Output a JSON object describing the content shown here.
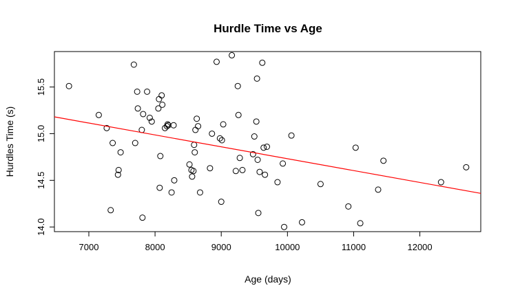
{
  "chart_data": {
    "type": "scatter",
    "title": "Hurdle Time vs Age",
    "xlabel": "Age (days)",
    "ylabel": "Hurdles Time (s)",
    "xlim": [
      6480,
      12920
    ],
    "ylim": [
      13.95,
      15.88
    ],
    "xticks": [
      "7000",
      "8000",
      "9000",
      "10000",
      "11000",
      "12000"
    ],
    "yticks": [
      "14.0",
      "14.5",
      "15.0",
      "15.5"
    ],
    "grid": false,
    "colors": {
      "points": "#000000",
      "trendline": "#ff0000"
    },
    "trendline": {
      "x": [
        6480,
        12920
      ],
      "y": [
        15.18,
        14.36
      ]
    },
    "points": [
      [
        6700,
        15.51
      ],
      [
        7150,
        15.2
      ],
      [
        7270,
        15.06
      ],
      [
        7330,
        14.18
      ],
      [
        7360,
        14.9
      ],
      [
        7440,
        14.56
      ],
      [
        7450,
        14.61
      ],
      [
        7480,
        14.8
      ],
      [
        7680,
        15.74
      ],
      [
        7700,
        14.9
      ],
      [
        7730,
        15.45
      ],
      [
        7740,
        15.27
      ],
      [
        7800,
        15.04
      ],
      [
        7810,
        14.1
      ],
      [
        7820,
        15.21
      ],
      [
        7880,
        15.45
      ],
      [
        7920,
        15.17
      ],
      [
        7950,
        15.13
      ],
      [
        8050,
        15.27
      ],
      [
        8060,
        15.37
      ],
      [
        8070,
        14.42
      ],
      [
        8080,
        14.76
      ],
      [
        8100,
        15.41
      ],
      [
        8110,
        15.31
      ],
      [
        8150,
        15.06
      ],
      [
        8180,
        15.08
      ],
      [
        8190,
        15.1
      ],
      [
        8200,
        15.09
      ],
      [
        8250,
        14.37
      ],
      [
        8280,
        15.09
      ],
      [
        8290,
        14.5
      ],
      [
        8520,
        14.67
      ],
      [
        8550,
        14.61
      ],
      [
        8560,
        14.54
      ],
      [
        8580,
        14.6
      ],
      [
        8590,
        14.88
      ],
      [
        8600,
        14.8
      ],
      [
        8610,
        15.04
      ],
      [
        8630,
        15.16
      ],
      [
        8650,
        15.08
      ],
      [
        8680,
        14.37
      ],
      [
        8830,
        14.63
      ],
      [
        8860,
        15.0
      ],
      [
        8930,
        15.77
      ],
      [
        8980,
        14.95
      ],
      [
        9000,
        14.27
      ],
      [
        9010,
        14.93
      ],
      [
        9030,
        15.1
      ],
      [
        9160,
        15.84
      ],
      [
        9220,
        14.6
      ],
      [
        9250,
        15.51
      ],
      [
        9260,
        15.2
      ],
      [
        9280,
        14.74
      ],
      [
        9320,
        14.61
      ],
      [
        9480,
        14.78
      ],
      [
        9500,
        14.97
      ],
      [
        9530,
        15.13
      ],
      [
        9540,
        15.59
      ],
      [
        9550,
        14.72
      ],
      [
        9560,
        14.15
      ],
      [
        9580,
        14.59
      ],
      [
        9620,
        15.76
      ],
      [
        9640,
        14.85
      ],
      [
        9660,
        14.56
      ],
      [
        9690,
        14.86
      ],
      [
        9850,
        14.48
      ],
      [
        9930,
        14.68
      ],
      [
        9950,
        14.0
      ],
      [
        10060,
        14.98
      ],
      [
        10220,
        14.05
      ],
      [
        10500,
        14.46
      ],
      [
        10920,
        14.22
      ],
      [
        11030,
        14.85
      ],
      [
        11100,
        14.04
      ],
      [
        11370,
        14.4
      ],
      [
        11450,
        14.71
      ],
      [
        12320,
        14.48
      ],
      [
        12700,
        14.64
      ]
    ]
  }
}
